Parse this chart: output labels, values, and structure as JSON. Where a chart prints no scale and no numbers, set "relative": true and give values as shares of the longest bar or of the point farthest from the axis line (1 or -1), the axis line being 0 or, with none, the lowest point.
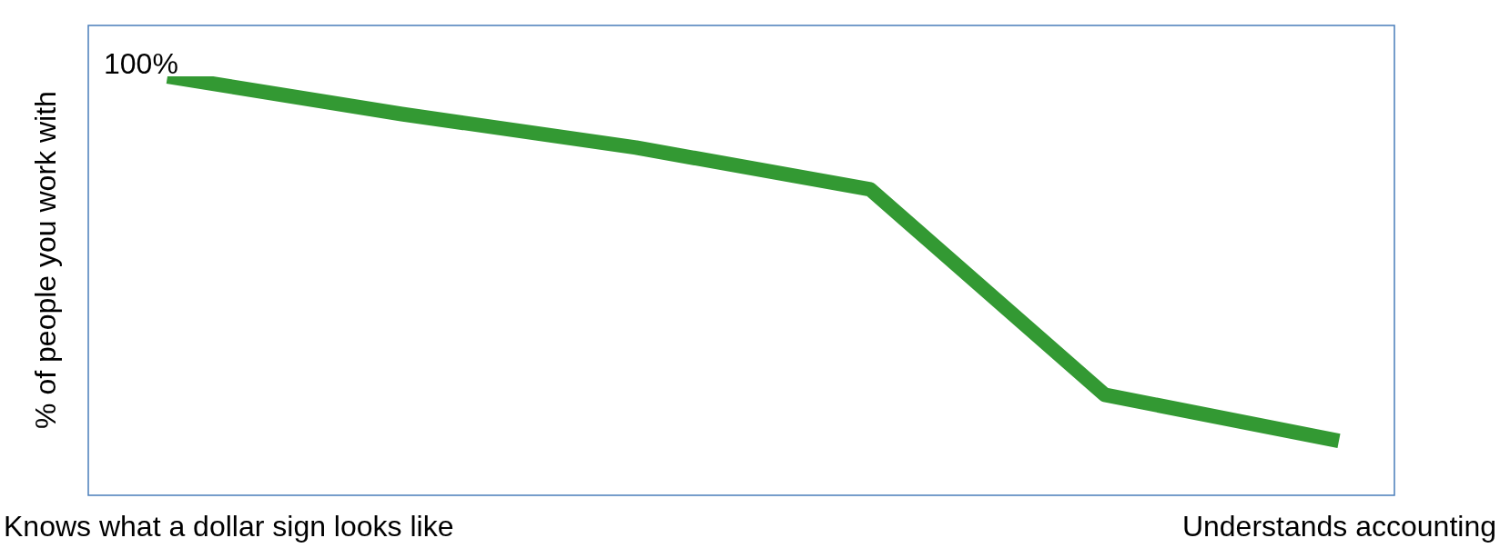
{
  "chart_data": {
    "type": "line",
    "relative": true,
    "ylabel": "% of people you work with",
    "categories": [
      null,
      null,
      null,
      null,
      null,
      null
    ],
    "series": [
      {
        "color": "#339933",
        "values": [
          1,
          0.91,
          0.83,
          0.73,
          0.24,
          0.13
        ]
      }
    ],
    "annotations": [
      "100%",
      "Knows what a dollar sign looks like",
      "Understands accounting"
    ],
    "marker": "none",
    "legend": false
  }
}
